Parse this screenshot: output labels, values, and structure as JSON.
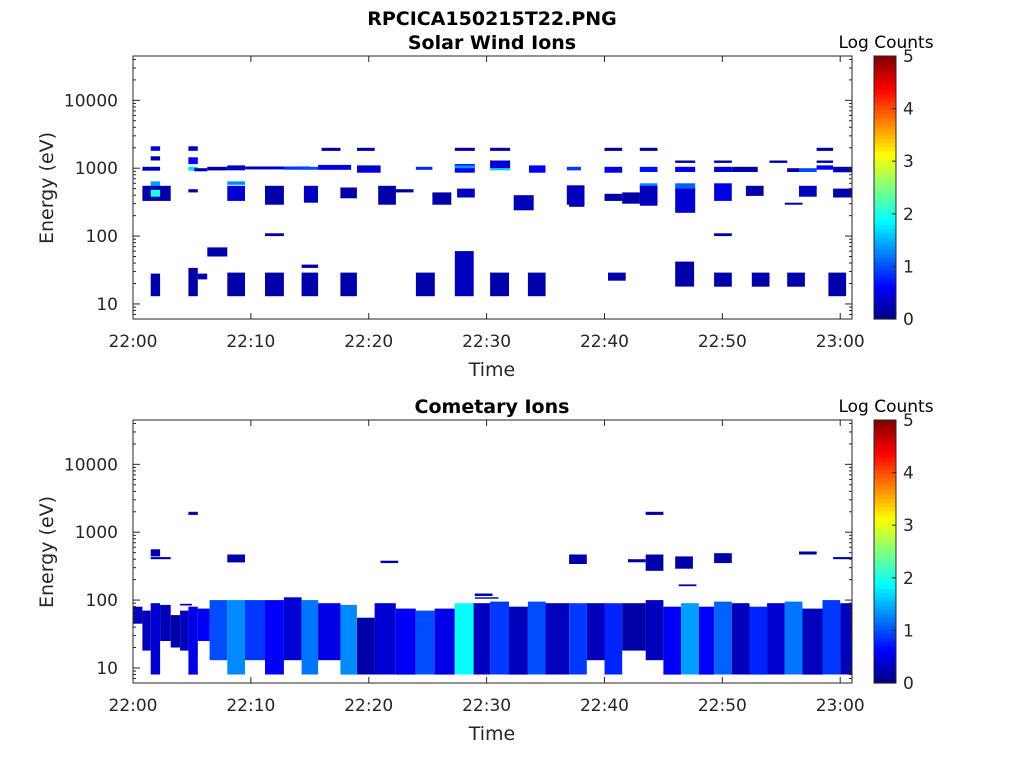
{
  "figure": {
    "title": "RPCICA150215T22.PNG"
  },
  "chart_data": [
    {
      "type": "heatmap",
      "title": "Solar Wind Ions",
      "xlabel": "Time",
      "ylabel": "Energy (eV)",
      "y_scale": "log",
      "xlim": [
        "22:00",
        "23:01"
      ],
      "ylim": [
        6,
        45000
      ],
      "x_ticks": [
        "22:00",
        "22:10",
        "22:20",
        "22:30",
        "22:40",
        "22:50",
        "23:00"
      ],
      "y_ticks": [
        "10",
        "100",
        "1000",
        "10000"
      ],
      "colorbar": {
        "label": "Log Counts",
        "range": [
          0,
          5
        ],
        "ticks": [
          "0",
          "1",
          "2",
          "3",
          "4",
          "5"
        ]
      },
      "grid": false,
      "cells_note": "each cell: [start_min, end_min, low_eV, high_eV, log_counts]",
      "cells": [
        [
          1.5,
          2.3,
          1800,
          2100,
          0.4
        ],
        [
          1.5,
          2.3,
          1300,
          1500,
          0.2
        ],
        [
          0.8,
          2.3,
          920,
          1050,
          0.3
        ],
        [
          1.5,
          2.3,
          550,
          640,
          1.4
        ],
        [
          0.8,
          3.2,
          330,
          550,
          0.2
        ],
        [
          1.5,
          2.3,
          380,
          480,
          2.0
        ],
        [
          4.7,
          5.5,
          1800,
          2100,
          0.3
        ],
        [
          4.7,
          5.5,
          1150,
          1450,
          0.6
        ],
        [
          4.7,
          5.5,
          920,
          1050,
          1.7
        ],
        [
          4.7,
          5.5,
          440,
          490,
          0.2
        ],
        [
          5.2,
          6.3,
          900,
          1000,
          0.2
        ],
        [
          6.3,
          8.0,
          930,
          1050,
          0.2
        ],
        [
          8.0,
          9.5,
          930,
          1100,
          0.3
        ],
        [
          8.0,
          9.5,
          570,
          640,
          1.3
        ],
        [
          8.0,
          9.5,
          330,
          550,
          0.4
        ],
        [
          9.5,
          15.0,
          960,
          1060,
          0.3
        ],
        [
          11.2,
          12.8,
          290,
          550,
          0.2
        ],
        [
          12.8,
          14.3,
          950,
          1060,
          0.9
        ],
        [
          14.3,
          15.7,
          950,
          1050,
          1.0
        ],
        [
          14.5,
          15.7,
          310,
          550,
          0.3
        ],
        [
          15.7,
          18.5,
          950,
          1120,
          0.5
        ],
        [
          16.0,
          17.6,
          1800,
          2000,
          0.2
        ],
        [
          17.6,
          19.0,
          360,
          520,
          0.2
        ],
        [
          19.0,
          20.5,
          1800,
          2000,
          0.2
        ],
        [
          19.0,
          21.0,
          860,
          1100,
          0.4
        ],
        [
          20.8,
          22.3,
          290,
          550,
          0.2
        ],
        [
          22.3,
          23.8,
          440,
          490,
          0.2
        ],
        [
          24.0,
          25.4,
          950,
          1050,
          0.8
        ],
        [
          25.4,
          27.0,
          290,
          400,
          0.2
        ],
        [
          25.4,
          27.0,
          380,
          440,
          0.2
        ],
        [
          27.3,
          29.0,
          1800,
          2000,
          0.2
        ],
        [
          27.3,
          29.0,
          860,
          1150,
          0.6
        ],
        [
          27.3,
          29.0,
          1000,
          1100,
          1.4
        ],
        [
          27.5,
          29.0,
          370,
          500,
          0.3
        ],
        [
          30.3,
          32.0,
          1800,
          2000,
          0.2
        ],
        [
          30.3,
          32.0,
          1000,
          1300,
          0.4
        ],
        [
          30.3,
          32.0,
          930,
          1000,
          1.6
        ],
        [
          32.3,
          34.0,
          240,
          400,
          0.3
        ],
        [
          33.6,
          35.0,
          860,
          1100,
          0.6
        ],
        [
          36.8,
          38.0,
          930,
          1050,
          0.9
        ],
        [
          36.8,
          38.3,
          290,
          560,
          0.3
        ],
        [
          37.0,
          38.3,
          270,
          300,
          0.2
        ],
        [
          40.0,
          41.5,
          1800,
          2000,
          0.2
        ],
        [
          40.0,
          41.5,
          860,
          1050,
          0.5
        ],
        [
          40.0,
          41.5,
          330,
          420,
          0.2
        ],
        [
          41.5,
          43.0,
          300,
          440,
          0.2
        ],
        [
          43.0,
          44.5,
          1800,
          2000,
          0.2
        ],
        [
          43.0,
          44.5,
          880,
          1050,
          0.7
        ],
        [
          43.0,
          44.5,
          500,
          600,
          1.3
        ],
        [
          43.0,
          44.5,
          280,
          550,
          0.3
        ],
        [
          46.0,
          47.7,
          1200,
          1300,
          0.2
        ],
        [
          46.0,
          47.7,
          880,
          1050,
          0.5
        ],
        [
          46.0,
          47.7,
          450,
          600,
          1.1
        ],
        [
          46.0,
          47.7,
          220,
          500,
          0.4
        ],
        [
          49.3,
          50.8,
          1200,
          1300,
          0.2
        ],
        [
          49.3,
          50.8,
          880,
          1050,
          0.4
        ],
        [
          49.3,
          50.8,
          330,
          600,
          0.5
        ],
        [
          50.8,
          53.0,
          880,
          1050,
          0.2
        ],
        [
          52.0,
          53.5,
          390,
          550,
          0.2
        ],
        [
          54.0,
          55.5,
          1200,
          1300,
          0.2
        ],
        [
          55.5,
          56.5,
          880,
          1000,
          0.2
        ],
        [
          55.3,
          56.8,
          290,
          310,
          0.2
        ],
        [
          56.5,
          58.0,
          880,
          1000,
          1.0
        ],
        [
          56.5,
          58.0,
          380,
          550,
          0.3
        ],
        [
          58.0,
          59.4,
          1800,
          2000,
          0.2
        ],
        [
          58.0,
          59.4,
          1200,
          1300,
          0.2
        ],
        [
          58.0,
          59.4,
          950,
          1100,
          0.6
        ],
        [
          59.4,
          61.0,
          870,
          1050,
          0.3
        ],
        [
          59.4,
          61.0,
          370,
          500,
          0.2
        ],
        [
          11.2,
          12.8,
          100,
          110,
          0.2
        ],
        [
          49.3,
          50.8,
          100,
          110,
          0.2
        ],
        [
          6.3,
          8.0,
          50,
          68,
          0.2
        ],
        [
          1.5,
          2.3,
          13,
          28,
          0.2
        ],
        [
          4.7,
          5.5,
          13,
          34,
          0.2
        ],
        [
          5.5,
          6.3,
          23,
          28,
          0.2
        ],
        [
          8.0,
          9.5,
          13,
          29,
          0.2
        ],
        [
          11.2,
          12.8,
          13,
          29,
          0.2
        ],
        [
          14.3,
          15.7,
          13,
          29,
          0.2
        ],
        [
          14.3,
          15.7,
          34,
          38,
          0.2
        ],
        [
          17.6,
          19.0,
          13,
          29,
          0.2
        ],
        [
          24.0,
          25.6,
          13,
          29,
          0.2
        ],
        [
          27.3,
          28.9,
          13,
          60,
          0.3
        ],
        [
          30.3,
          31.9,
          13,
          29,
          0.2
        ],
        [
          33.5,
          35.0,
          13,
          29,
          0.2
        ],
        [
          40.3,
          41.8,
          22,
          29,
          0.2
        ],
        [
          46.0,
          47.6,
          18,
          42,
          0.2
        ],
        [
          49.3,
          50.8,
          18,
          29,
          0.2
        ],
        [
          52.5,
          54.0,
          18,
          29,
          0.2
        ],
        [
          55.5,
          57.0,
          18,
          29,
          0.2
        ],
        [
          59.0,
          60.5,
          13,
          29,
          0.2
        ]
      ]
    },
    {
      "type": "heatmap",
      "title": "Cometary Ions",
      "xlabel": "Time",
      "ylabel": "Energy (eV)",
      "y_scale": "log",
      "xlim": [
        "22:00",
        "23:01"
      ],
      "ylim": [
        6,
        45000
      ],
      "x_ticks": [
        "22:00",
        "22:10",
        "22:20",
        "22:30",
        "22:40",
        "22:50",
        "23:00"
      ],
      "y_ticks": [
        "10",
        "100",
        "1000",
        "10000"
      ],
      "colorbar": {
        "label": "Log Counts",
        "range": [
          0,
          5
        ],
        "ticks": [
          "0",
          "1",
          "2",
          "3",
          "4",
          "5"
        ]
      },
      "grid": false,
      "cells_note": "each cell: [start_min, end_min, low_eV, high_eV, log_counts]",
      "cells": [
        [
          1.5,
          2.3,
          440,
          560,
          0.2
        ],
        [
          1.5,
          3.2,
          400,
          430,
          0.2
        ],
        [
          4.7,
          5.5,
          1800,
          2000,
          0.2
        ],
        [
          8.0,
          9.5,
          360,
          470,
          0.2
        ],
        [
          21.0,
          22.5,
          350,
          380,
          0.2
        ],
        [
          37.0,
          38.5,
          340,
          470,
          0.2
        ],
        [
          42.0,
          43.5,
          360,
          400,
          0.2
        ],
        [
          43.5,
          45.0,
          270,
          470,
          0.2
        ],
        [
          43.5,
          45.0,
          1800,
          2000,
          0.2
        ],
        [
          46.0,
          47.5,
          290,
          440,
          0.2
        ],
        [
          49.3,
          50.8,
          350,
          490,
          0.2
        ],
        [
          56.5,
          58.0,
          470,
          520,
          0.2
        ],
        [
          59.4,
          61.0,
          400,
          430,
          0.2
        ],
        [
          29.0,
          30.5,
          115,
          125,
          0.2
        ],
        [
          46.3,
          47.8,
          160,
          170,
          0.2
        ],
        [
          4.0,
          5.0,
          83,
          88,
          0.2
        ],
        [
          29.0,
          31.0,
          105,
          110,
          0.2
        ],
        [
          0.0,
          0.8,
          45,
          80,
          0.3
        ],
        [
          0.8,
          1.5,
          18,
          70,
          0.3
        ],
        [
          1.5,
          2.3,
          8,
          90,
          0.4
        ],
        [
          2.3,
          3.2,
          25,
          85,
          0.3
        ],
        [
          3.2,
          4.0,
          20,
          60,
          0.2
        ],
        [
          4.0,
          4.7,
          18,
          70,
          0.3
        ],
        [
          4.7,
          5.5,
          8,
          80,
          0.5
        ],
        [
          5.5,
          6.5,
          25,
          75,
          0.6
        ],
        [
          6.5,
          8.0,
          13,
          100,
          1.0
        ],
        [
          8.0,
          9.5,
          8,
          100,
          1.3
        ],
        [
          9.5,
          11.2,
          13,
          100,
          0.9
        ],
        [
          11.2,
          12.8,
          8,
          100,
          0.6
        ],
        [
          12.8,
          14.3,
          13,
          110,
          0.4
        ],
        [
          14.3,
          15.7,
          8,
          100,
          1.2
        ],
        [
          15.7,
          17.6,
          13,
          90,
          0.5
        ],
        [
          17.6,
          19.0,
          8,
          85,
          1.3
        ],
        [
          19.0,
          20.5,
          8,
          55,
          0.2
        ],
        [
          20.5,
          22.3,
          8,
          90,
          0.4
        ],
        [
          22.3,
          24.0,
          8,
          75,
          0.6
        ],
        [
          24.0,
          25.6,
          8,
          70,
          1.0
        ],
        [
          25.6,
          27.3,
          8,
          75,
          0.5
        ],
        [
          27.3,
          28.9,
          8,
          90,
          1.9
        ],
        [
          28.9,
          30.3,
          8,
          90,
          0.3
        ],
        [
          30.3,
          31.9,
          8,
          95,
          0.9
        ],
        [
          31.9,
          33.5,
          8,
          80,
          0.3
        ],
        [
          33.5,
          35.0,
          8,
          95,
          1.0
        ],
        [
          35.0,
          37.0,
          8,
          90,
          0.3
        ],
        [
          37.0,
          38.5,
          8,
          90,
          0.9
        ],
        [
          38.5,
          40.0,
          13,
          90,
          0.3
        ],
        [
          40.0,
          41.5,
          8,
          90,
          0.8
        ],
        [
          41.5,
          43.5,
          18,
          90,
          0.2
        ],
        [
          43.5,
          45.0,
          13,
          100,
          0.3
        ],
        [
          45.0,
          46.5,
          8,
          80,
          0.6
        ],
        [
          46.5,
          48.0,
          8,
          90,
          1.4
        ],
        [
          48.0,
          49.3,
          8,
          80,
          0.6
        ],
        [
          49.3,
          50.8,
          8,
          95,
          1.1
        ],
        [
          50.8,
          52.3,
          8,
          90,
          0.3
        ],
        [
          52.3,
          53.8,
          8,
          80,
          0.8
        ],
        [
          53.8,
          55.3,
          8,
          90,
          0.4
        ],
        [
          55.3,
          56.8,
          8,
          95,
          1.2
        ],
        [
          56.8,
          58.5,
          8,
          75,
          0.3
        ],
        [
          58.5,
          60.0,
          8,
          100,
          0.9
        ],
        [
          60.0,
          61.0,
          8,
          90,
          0.3
        ]
      ]
    }
  ]
}
